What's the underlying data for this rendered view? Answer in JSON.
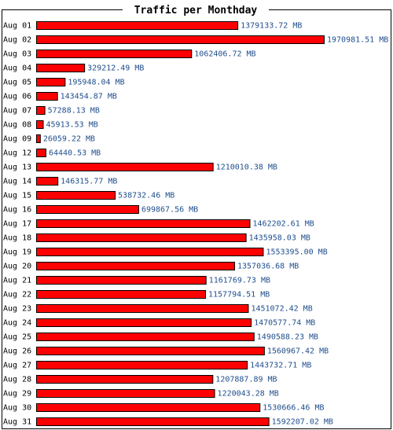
{
  "chart_data": {
    "type": "bar",
    "orientation": "horizontal",
    "title": "Traffic per Monthday",
    "xlabel": "",
    "ylabel": "",
    "unit": "MB",
    "xlim": [
      0,
      1970981.51
    ],
    "grid": false,
    "legend": "none",
    "categories": [
      "Aug 01",
      "Aug 02",
      "Aug 03",
      "Aug 04",
      "Aug 05",
      "Aug 06",
      "Aug 07",
      "Aug 08",
      "Aug 09",
      "Aug 12",
      "Aug 13",
      "Aug 14",
      "Aug 15",
      "Aug 16",
      "Aug 17",
      "Aug 18",
      "Aug 19",
      "Aug 20",
      "Aug 21",
      "Aug 22",
      "Aug 23",
      "Aug 24",
      "Aug 25",
      "Aug 26",
      "Aug 27",
      "Aug 28",
      "Aug 29",
      "Aug 30",
      "Aug 31"
    ],
    "values": [
      1379133.72,
      1970981.51,
      1062406.72,
      329212.49,
      195948.04,
      143454.87,
      57288.13,
      45913.53,
      26059.22,
      64440.53,
      1210010.38,
      146315.77,
      538732.46,
      699867.56,
      1462202.61,
      1435958.03,
      1553395.0,
      1357036.68,
      1161769.73,
      1157794.51,
      1451072.42,
      1470577.74,
      1490588.23,
      1560967.42,
      1443732.71,
      1207887.89,
      1220043.28,
      1530666.46,
      1592207.02
    ],
    "value_labels": [
      "1379133.72 MB",
      "1970981.51 MB",
      "1062406.72 MB",
      "329212.49 MB",
      "195948.04 MB",
      "143454.87 MB",
      "57288.13 MB",
      "45913.53 MB",
      "26059.22 MB",
      "64440.53 MB",
      "1210010.38 MB",
      "146315.77 MB",
      "538732.46 MB",
      "699867.56 MB",
      "1462202.61 MB",
      "1435958.03 MB",
      "1553395.00 MB",
      "1357036.68 MB",
      "1161769.73 MB",
      "1157794.51 MB",
      "1451072.42 MB",
      "1470577.74 MB",
      "1490588.23 MB",
      "1560967.42 MB",
      "1443732.71 MB",
      "1207887.89 MB",
      "1220043.28 MB",
      "1530666.46 MB",
      "1592207.02 MB"
    ],
    "colors": {
      "bar_fill": "#ff0000",
      "bar_stroke": "#000000",
      "value_label": "#1f4e8c",
      "label": "#000000",
      "frame": "#000000",
      "background": "#ffffff"
    }
  }
}
